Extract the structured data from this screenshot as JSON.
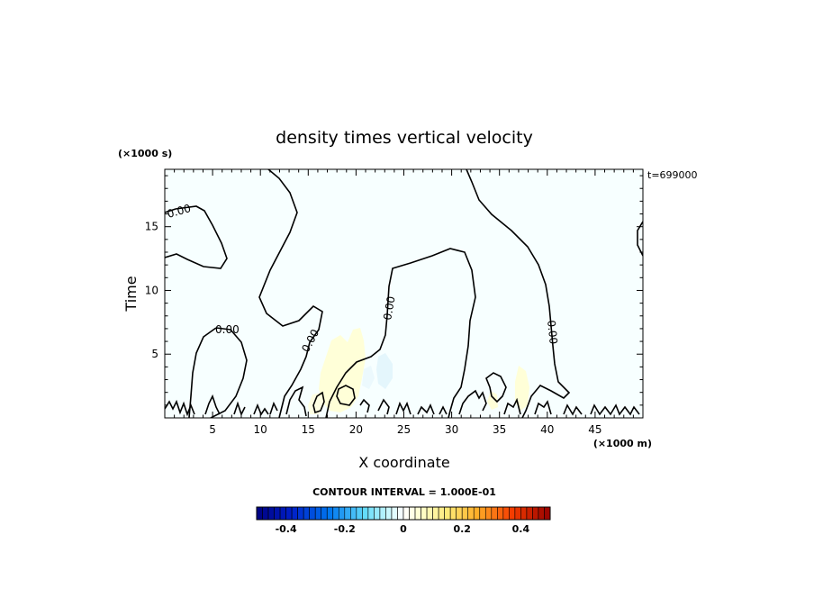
{
  "chart_data": {
    "type": "heatmap",
    "title": "density times vertical velocity",
    "xlabel": "X coordinate",
    "ylabel": "Time",
    "x_unit": "(×1000 m)",
    "y_unit": "(×1000 s)",
    "time_label": "t=699000",
    "xlim": [
      0,
      50
    ],
    "ylim": [
      0,
      19.5
    ],
    "x_ticks": [
      5,
      10,
      15,
      20,
      25,
      30,
      35,
      40,
      45
    ],
    "y_ticks": [
      5,
      10,
      15
    ],
    "contour_interval_text": "CONTOUR INTERVAL = 1.000E-01",
    "contour_labels": [
      "0.00",
      "0.00",
      "0.00",
      "0.00",
      "0.00"
    ],
    "colorbar": {
      "range": [
        -0.5,
        0.5
      ],
      "tick_values": [
        -0.4,
        -0.2,
        0,
        0.2,
        0.4
      ],
      "tick_labels": [
        "-0.4",
        "-0.2",
        "0",
        "0.2",
        "0.4"
      ]
    },
    "background_color": "#f7ffff",
    "positive_patch_color": "#ffffd8",
    "negative_patch_color": "#e4f6fc"
  }
}
